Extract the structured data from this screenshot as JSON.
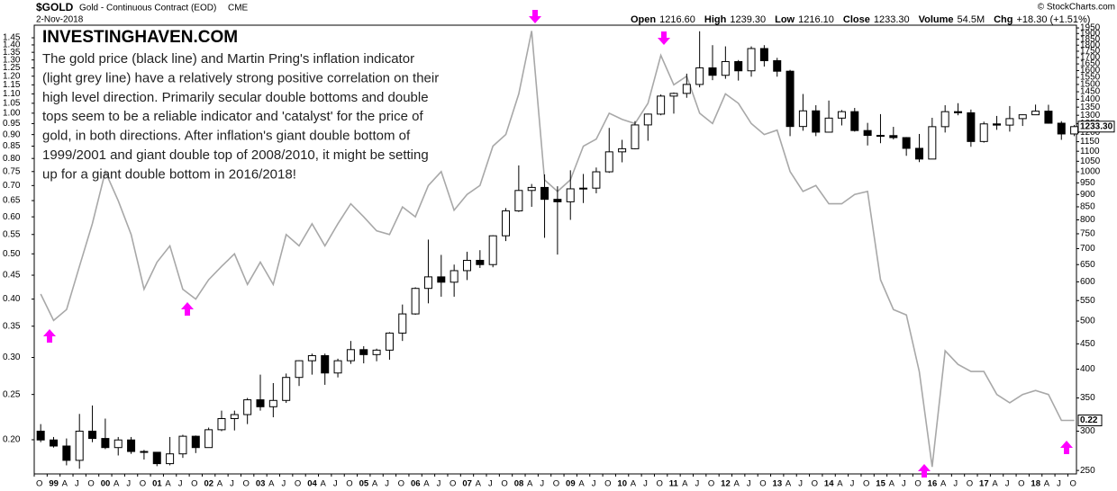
{
  "chart_data": {
    "type": "candlestick",
    "header": {
      "symbol": "$GOLD",
      "name": "Gold - Continuous Contract (EOD)",
      "exchange": "CME",
      "date": "2-Nov-2018",
      "source": "© StockCharts.com",
      "quote": [
        {
          "label": "Open",
          "value": "1216.60"
        },
        {
          "label": "High",
          "value": "1239.30"
        },
        {
          "label": "Low",
          "value": "1216.10"
        },
        {
          "label": "Close",
          "value": "1233.30"
        },
        {
          "label": "Volume",
          "value": "54.5M"
        },
        {
          "label": "Chg",
          "value": "+18.30 (+1.51%)"
        }
      ]
    },
    "annotation_title": "INVESTINGHAVEN.COM",
    "annotation_lines": [
      "The gold price (black line) and Martin Pring's inflation indicator",
      "(light grey line) have a relatively strong positive correlation on their",
      "high level direction. Primarily secular double bottoms and double",
      "tops seem to be a reliable indicator and 'catalyst' for the price of",
      "gold, in both directions. After inflation's giant double bottom of",
      "1999/2001 and giant double top of 2008/2010, it might be setting",
      "up for a giant double bottom in 2016/2018!"
    ],
    "log_scale": true,
    "grid": false,
    "x": [
      "1998-10",
      "1999-01",
      "1999-04",
      "1999-07",
      "1999-10",
      "2000-01",
      "2000-04",
      "2000-07",
      "2000-10",
      "2001-01",
      "2001-04",
      "2001-07",
      "2001-10",
      "2002-01",
      "2002-04",
      "2002-07",
      "2002-10",
      "2003-01",
      "2003-04",
      "2003-07",
      "2003-10",
      "2004-01",
      "2004-04",
      "2004-07",
      "2004-10",
      "2005-01",
      "2005-04",
      "2005-07",
      "2005-10",
      "2006-01",
      "2006-04",
      "2006-07",
      "2006-10",
      "2007-01",
      "2007-04",
      "2007-07",
      "2007-10",
      "2008-01",
      "2008-04",
      "2008-07",
      "2008-10",
      "2009-01",
      "2009-04",
      "2009-07",
      "2009-10",
      "2010-01",
      "2010-04",
      "2010-07",
      "2010-10",
      "2011-01",
      "2011-04",
      "2011-07",
      "2011-10",
      "2012-01",
      "2012-04",
      "2012-07",
      "2012-10",
      "2013-01",
      "2013-04",
      "2013-07",
      "2013-10",
      "2014-01",
      "2014-04",
      "2014-07",
      "2014-10",
      "2015-01",
      "2015-04",
      "2015-07",
      "2015-10",
      "2016-01",
      "2016-04",
      "2016-07",
      "2016-10",
      "2017-01",
      "2017-04",
      "2017-07",
      "2017-10",
      "2018-01",
      "2018-04",
      "2018-07",
      "2018-10"
    ],
    "xlim": [
      "1998-10",
      "2018-12"
    ],
    "xticks": [
      {
        "value": "1998-10",
        "label": "O"
      },
      {
        "value": "1999-01",
        "label": "99"
      },
      {
        "value": "1999-04",
        "label": "A"
      },
      {
        "value": "1999-07",
        "label": "J"
      },
      {
        "value": "1999-10",
        "label": "O"
      },
      {
        "value": "2000-01",
        "label": "00"
      },
      {
        "value": "2000-04",
        "label": "A"
      },
      {
        "value": "2000-07",
        "label": "J"
      },
      {
        "value": "2000-10",
        "label": "O"
      },
      {
        "value": "2001-01",
        "label": "01"
      },
      {
        "value": "2001-04",
        "label": "A"
      },
      {
        "value": "2001-07",
        "label": "J"
      },
      {
        "value": "2001-10",
        "label": "O"
      },
      {
        "value": "2002-01",
        "label": "02"
      },
      {
        "value": "2002-04",
        "label": "A"
      },
      {
        "value": "2002-07",
        "label": "J"
      },
      {
        "value": "2002-10",
        "label": "O"
      },
      {
        "value": "2003-01",
        "label": "03"
      },
      {
        "value": "2003-04",
        "label": "A"
      },
      {
        "value": "2003-07",
        "label": "J"
      },
      {
        "value": "2003-10",
        "label": "O"
      },
      {
        "value": "2004-01",
        "label": "04"
      },
      {
        "value": "2004-04",
        "label": "A"
      },
      {
        "value": "2004-07",
        "label": "J"
      },
      {
        "value": "2004-10",
        "label": "O"
      },
      {
        "value": "2005-01",
        "label": "05"
      },
      {
        "value": "2005-04",
        "label": "A"
      },
      {
        "value": "2005-07",
        "label": "J"
      },
      {
        "value": "2005-10",
        "label": "O"
      },
      {
        "value": "2006-01",
        "label": "06"
      },
      {
        "value": "2006-04",
        "label": "A"
      },
      {
        "value": "2006-07",
        "label": "J"
      },
      {
        "value": "2006-10",
        "label": "O"
      },
      {
        "value": "2007-01",
        "label": "07"
      },
      {
        "value": "2007-04",
        "label": "A"
      },
      {
        "value": "2007-07",
        "label": "J"
      },
      {
        "value": "2007-10",
        "label": "O"
      },
      {
        "value": "2008-01",
        "label": "08"
      },
      {
        "value": "2008-04",
        "label": "A"
      },
      {
        "value": "2008-07",
        "label": "J"
      },
      {
        "value": "2008-10",
        "label": "O"
      },
      {
        "value": "2009-01",
        "label": "09"
      },
      {
        "value": "2009-04",
        "label": "A"
      },
      {
        "value": "2009-07",
        "label": "J"
      },
      {
        "value": "2009-10",
        "label": "O"
      },
      {
        "value": "2010-01",
        "label": "10"
      },
      {
        "value": "2010-04",
        "label": "A"
      },
      {
        "value": "2010-07",
        "label": "J"
      },
      {
        "value": "2010-10",
        "label": "O"
      },
      {
        "value": "2011-01",
        "label": "11"
      },
      {
        "value": "2011-04",
        "label": "A"
      },
      {
        "value": "2011-07",
        "label": "J"
      },
      {
        "value": "2011-10",
        "label": "O"
      },
      {
        "value": "2012-01",
        "label": "12"
      },
      {
        "value": "2012-04",
        "label": "A"
      },
      {
        "value": "2012-07",
        "label": "J"
      },
      {
        "value": "2012-10",
        "label": "O"
      },
      {
        "value": "2013-01",
        "label": "13"
      },
      {
        "value": "2013-04",
        "label": "A"
      },
      {
        "value": "2013-07",
        "label": "J"
      },
      {
        "value": "2013-10",
        "label": "O"
      },
      {
        "value": "2014-01",
        "label": "14"
      },
      {
        "value": "2014-04",
        "label": "A"
      },
      {
        "value": "2014-07",
        "label": "J"
      },
      {
        "value": "2014-10",
        "label": "O"
      },
      {
        "value": "2015-01",
        "label": "15"
      },
      {
        "value": "2015-04",
        "label": "A"
      },
      {
        "value": "2015-07",
        "label": "J"
      },
      {
        "value": "2015-10",
        "label": "O"
      },
      {
        "value": "2016-01",
        "label": "16"
      },
      {
        "value": "2016-04",
        "label": "A"
      },
      {
        "value": "2016-07",
        "label": "J"
      },
      {
        "value": "2016-10",
        "label": "O"
      },
      {
        "value": "2017-01",
        "label": "17"
      },
      {
        "value": "2017-04",
        "label": "A"
      },
      {
        "value": "2017-07",
        "label": "J"
      },
      {
        "value": "2017-10",
        "label": "O"
      },
      {
        "value": "2018-01",
        "label": "18"
      },
      {
        "value": "2018-04",
        "label": "A"
      },
      {
        "value": "2018-07",
        "label": "J"
      },
      {
        "value": "2018-10",
        "label": "O"
      }
    ],
    "ylim": [
      246,
      1975
    ],
    "yticks": [
      250,
      300,
      350,
      400,
      450,
      500,
      550,
      600,
      650,
      700,
      750,
      800,
      850,
      900,
      950,
      1000,
      1050,
      1100,
      1150,
      1200,
      1250,
      1300,
      1350,
      1400,
      1450,
      1500,
      1550,
      1600,
      1650,
      1700,
      1750,
      1800,
      1850,
      1900,
      1950
    ],
    "y2lim": [
      0.169,
      1.543
    ],
    "y2ticks": [
      {
        "value": 0.2,
        "label": "0.20"
      },
      0.25,
      {
        "value": 0.3,
        "label": "0.30"
      },
      0.35,
      {
        "value": 0.4,
        "label": "0.40"
      },
      0.45,
      {
        "value": 0.5,
        "label": "0.50"
      },
      0.55,
      {
        "value": 0.6,
        "label": "0.60"
      },
      0.65,
      {
        "value": 0.7,
        "label": "0.70"
      },
      0.75,
      {
        "value": 0.8,
        "label": "0.80"
      },
      0.85,
      {
        "value": 0.9,
        "label": "0.90"
      },
      0.95,
      {
        "value": 1,
        "label": "1.00"
      },
      1.05,
      {
        "value": 1.1,
        "label": "1.10"
      },
      1.15,
      {
        "value": 1.2,
        "label": "1.20"
      },
      1.25,
      {
        "value": 1.3,
        "label": "1.30"
      },
      1.35,
      {
        "value": 1.4,
        "label": "1.40"
      },
      1.45
    ],
    "series": [
      {
        "type": "candlestick",
        "color": "#000000",
        "up_fill": "#ffffff",
        "open": [
          300,
          288,
          280,
          262,
          300,
          290,
          278,
          288,
          273,
          272,
          258,
          270,
          293,
          278,
          302,
          318,
          324,
          347,
          336,
          346,
          385,
          416,
          426,
          393,
          416,
          438,
          428,
          437,
          473,
          517,
          582,
          614,
          599,
          632,
          663,
          650,
          743,
          834,
          917,
          930,
          880,
          870,
          924,
          927,
          1000,
          1097,
          1113,
          1243,
          1307,
          1421,
          1439,
          1500,
          1620,
          1565,
          1668,
          1598,
          1772,
          1675,
          1595,
          1234,
          1327,
          1202,
          1283,
          1322,
          1211,
          1184,
          1183,
          1172,
          1115,
          1061,
          1233,
          1322,
          1315,
          1151,
          1249,
          1242,
          1280,
          1303,
          1325,
          1253,
          1192
        ],
        "high": [
          310,
          292,
          290,
          325,
          338,
          318,
          292,
          292,
          275,
          272,
          292,
          295,
          294,
          305,
          330,
          330,
          350,
          390,
          375,
          392,
          417,
          430,
          430,
          420,
          456,
          445,
          440,
          475,
          540,
          585,
          730,
          680,
          650,
          690,
          695,
          745,
          845,
          1030,
          945,
          988,
          935,
          1007,
          990,
          1020,
          1226,
          1160,
          1265,
          1310,
          1432,
          1445,
          1577,
          1920,
          1800,
          1790,
          1680,
          1790,
          1800,
          1697,
          1605,
          1435,
          1362,
          1392,
          1332,
          1345,
          1255,
          1307,
          1232,
          1175,
          1192,
          1285,
          1362,
          1375,
          1335,
          1262,
          1296,
          1357,
          1305,
          1366,
          1365,
          1265,
          1243
        ],
        "low": [
          285,
          278,
          256,
          252,
          285,
          276,
          268,
          270,
          263,
          255,
          256,
          265,
          271,
          278,
          300,
          301,
          310,
          330,
          320,
          342,
          370,
          390,
          372,
          385,
          410,
          411,
          415,
          418,
          456,
          515,
          543,
          560,
          560,
          605,
          640,
          642,
          725,
          830,
          850,
          736,
          681,
          800,
          865,
          905,
          995,
          1045,
          1110,
          1155,
          1300,
          1310,
          1410,
          1480,
          1530,
          1540,
          1527,
          1555,
          1630,
          1555,
          1180,
          1210,
          1180,
          1200,
          1240,
          1205,
          1130,
          1142,
          1162,
          1077,
          1046,
          1061,
          1200,
          1300,
          1123,
          1145,
          1215,
          1205,
          1237,
          1302,
          1250,
          1160,
          1180
        ],
        "close": [
          288,
          280,
          262,
          300,
          290,
          278,
          288,
          273,
          272,
          258,
          270,
          293,
          278,
          302,
          318,
          324,
          347,
          336,
          346,
          385,
          416,
          426,
          393,
          416,
          438,
          428,
          437,
          473,
          517,
          582,
          614,
          599,
          632,
          663,
          650,
          743,
          834,
          917,
          930,
          880,
          870,
          924,
          927,
          1000,
          1097,
          1113,
          1243,
          1307,
          1421,
          1439,
          1500,
          1620,
          1565,
          1668,
          1598,
          1772,
          1675,
          1595,
          1234,
          1327,
          1202,
          1283,
          1322,
          1211,
          1184,
          1183,
          1172,
          1115,
          1061,
          1233,
          1322,
          1315,
          1151,
          1249,
          1242,
          1280,
          1303,
          1325,
          1253,
          1192,
          1233.3
        ],
        "end_label": "1233.30"
      },
      {
        "type": "line",
        "axis": "y2",
        "color": "#a8a8a8",
        "values": [
          0.41,
          0.36,
          0.38,
          0.47,
          0.58,
          0.75,
          0.65,
          0.55,
          0.42,
          0.48,
          0.52,
          0.42,
          0.4,
          0.44,
          0.47,
          0.5,
          0.43,
          0.48,
          0.43,
          0.55,
          0.52,
          0.58,
          0.52,
          0.58,
          0.64,
          0.6,
          0.56,
          0.55,
          0.63,
          0.6,
          0.7,
          0.75,
          0.62,
          0.67,
          0.7,
          0.85,
          0.9,
          1.1,
          1.5,
          0.72,
          0.68,
          0.72,
          0.85,
          0.88,
          1.0,
          0.97,
          0.95,
          1.05,
          1.33,
          1.15,
          1.2,
          1.0,
          0.95,
          1.1,
          1.05,
          0.95,
          0.9,
          0.92,
          0.75,
          0.68,
          0.7,
          0.64,
          0.64,
          0.67,
          0.68,
          0.44,
          0.38,
          0.37,
          0.28,
          0.175,
          0.31,
          0.29,
          0.28,
          0.28,
          0.25,
          0.24,
          0.25,
          0.255,
          0.25,
          0.22,
          0.22
        ],
        "end_label": "0.22"
      }
    ]
  }
}
